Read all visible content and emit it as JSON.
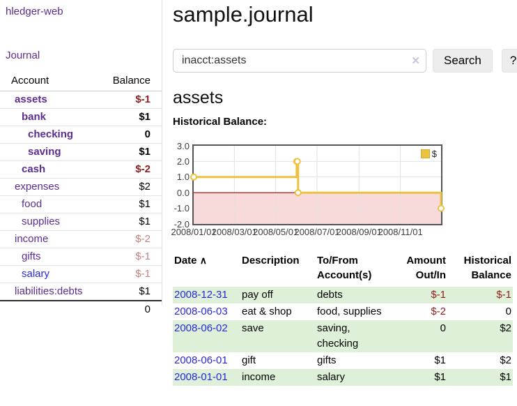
{
  "colors": {
    "purple": "#5c2d91",
    "blue": "#2626dd",
    "neg-strong": "#8f1d1d",
    "neg-muted": "#c08383",
    "green-row": "#dff0d8",
    "gold": "#edc240"
  },
  "app": {
    "title": "hledger-web"
  },
  "sidebar": {
    "nav_journal": "Journal",
    "accounts": {
      "headers": [
        "Account",
        "Balance"
      ],
      "rows": [
        {
          "label": "assets",
          "indent": 1,
          "bold": true,
          "link": "purple",
          "balance": "$-1",
          "balance_class": "neg-strong"
        },
        {
          "label": "bank",
          "indent": 2,
          "bold": true,
          "link": "purple",
          "balance": "$1",
          "balance_class": ""
        },
        {
          "label": "checking",
          "indent": 3,
          "bold": true,
          "link": "purple",
          "balance": "0",
          "balance_class": ""
        },
        {
          "label": "saving",
          "indent": 3,
          "bold": true,
          "link": "purple",
          "balance": "$1",
          "balance_class": ""
        },
        {
          "label": "cash",
          "indent": 2,
          "bold": true,
          "link": "purple",
          "balance": "$-2",
          "balance_class": "neg-strong"
        },
        {
          "label": "expenses",
          "indent": 1,
          "bold": false,
          "link": "purple",
          "balance": "$2",
          "balance_class": ""
        },
        {
          "label": "food",
          "indent": 2,
          "bold": false,
          "link": "purple",
          "balance": "$1",
          "balance_class": ""
        },
        {
          "label": "supplies",
          "indent": 2,
          "bold": false,
          "link": "purple",
          "balance": "$1",
          "balance_class": ""
        },
        {
          "label": "income",
          "indent": 1,
          "bold": false,
          "link": "purple",
          "balance": "$-2",
          "balance_class": "neg-muted"
        },
        {
          "label": "gifts",
          "indent": 2,
          "bold": false,
          "link": "purple",
          "balance": "$-1",
          "balance_class": "neg-muted"
        },
        {
          "label": "salary",
          "indent": 2,
          "bold": false,
          "link": "blue",
          "balance": "$-1",
          "balance_class": "neg-muted"
        },
        {
          "label": "liabilities:debts",
          "indent": 1,
          "bold": false,
          "link": "purple",
          "balance": "$1",
          "balance_class": ""
        }
      ],
      "total": "0"
    }
  },
  "main": {
    "title": "sample.journal",
    "search": {
      "value": "inacct:assets",
      "clear_icon": "✕",
      "search_label": "Search",
      "help_label": "?"
    },
    "account_heading": "assets",
    "chart_label": "Historical Balance:",
    "register": {
      "headers": {
        "date": "Date",
        "description": "Description",
        "accounts": "To/From Account(s)",
        "amount": "Amount Out/In",
        "balance": "Historical Balance"
      },
      "sort_icon": "∧",
      "rows": [
        {
          "date": "2008-12-31",
          "description": "pay off",
          "accounts": "debts",
          "amount": "$-1",
          "amount_class": "neg-strong",
          "balance": "$-1",
          "balance_class": "neg-strong",
          "shaded": true
        },
        {
          "date": "2008-06-03",
          "description": "eat & shop",
          "accounts": "food, supplies",
          "amount": "$-2",
          "amount_class": "neg-strong",
          "balance": "0",
          "balance_class": "",
          "shaded": false
        },
        {
          "date": "2008-06-02",
          "description": "save",
          "accounts": "saving, checking",
          "amount": "0",
          "amount_class": "",
          "balance": "$2",
          "balance_class": "",
          "shaded": true
        },
        {
          "date": "2008-06-01",
          "description": "gift",
          "accounts": "gifts",
          "amount": "$1",
          "amount_class": "",
          "balance": "$2",
          "balance_class": "",
          "shaded": false
        },
        {
          "date": "2008-01-01",
          "description": "income",
          "accounts": "salary",
          "amount": "$1",
          "amount_class": "",
          "balance": "$1",
          "balance_class": "",
          "shaded": true
        }
      ]
    }
  },
  "chart_data": {
    "type": "line",
    "title": "Historical Balance:",
    "ylabel": "",
    "xlabel": "",
    "ylim": [
      -2,
      3
    ],
    "yticks": [
      3,
      2,
      1,
      0,
      -1,
      -2
    ],
    "ytick_labels": [
      "3.0",
      "2.0",
      "1.0",
      "0.0",
      "-1.0",
      "-2.0"
    ],
    "xtick_labels": [
      "2008/01/01",
      "2008/03/01",
      "2008/05/01",
      "2008/07/01",
      "2008/09/01",
      "2008/11/01"
    ],
    "xtick_days": [
      0,
      60,
      121,
      182,
      244,
      305
    ],
    "x_total_days": 365,
    "grid": true,
    "negative_region_color": "#f9dada",
    "zero_line_color": "#a40000",
    "grid_color": "#e2e2e2",
    "legend": {
      "label": "$",
      "position": "top-right"
    },
    "series": [
      {
        "name": "$",
        "color": "#edc240",
        "marker_fill": "#ffffff",
        "step": true,
        "points": [
          {
            "date": "2008-01-01",
            "day": 0,
            "value": 1
          },
          {
            "date": "2008-06-01",
            "day": 152,
            "value": 2
          },
          {
            "date": "2008-06-02",
            "day": 153,
            "value": 2
          },
          {
            "date": "2008-06-03",
            "day": 154,
            "value": 0
          },
          {
            "date": "2008-12-31",
            "day": 365,
            "value": -1
          }
        ]
      }
    ]
  }
}
